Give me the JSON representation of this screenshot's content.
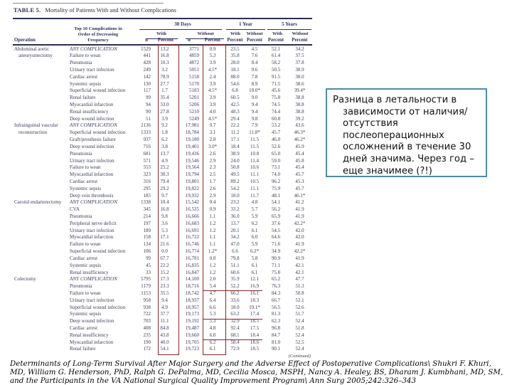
{
  "colors": {
    "table_ink": "#3a3a5e",
    "highlight_red": "#8a2424",
    "callout_border": "#4d8ca8",
    "background": "#ffffff"
  },
  "table": {
    "label": "TABLE 5.",
    "title": "Mortality of Patients With and Without Complications",
    "continued": "(Continued)",
    "headers": {
      "operation": "Operation",
      "complications": [
        "Top 10 Complications in",
        "Order of Decreasing",
        "Frequency"
      ],
      "groups": {
        "d30": "30 Days",
        "y1": "1 Year",
        "y5": "5 Years"
      },
      "sub": {
        "with": "With",
        "without": "Without"
      },
      "n": "n",
      "percent": "Percent"
    },
    "sections": [
      {
        "operation": "Abdominal aortic aneurysmectomy",
        "operation_lines": [
          "Abdominal aortic",
          "aneurysmectomy"
        ],
        "rows": [
          [
            "ANY COMPLICATION",
            "1529",
            "13.2",
            "3771",
            "0.9",
            "23.5",
            "4.5",
            "52.1",
            "34.2"
          ],
          [
            "Failure to wean",
            "441",
            "16.8",
            "4859",
            "5.3",
            "35.8",
            "7.6",
            "61.4",
            "37.5"
          ],
          [
            "Pneumonia",
            "428",
            "10.3",
            "4872",
            "3.9",
            "28.0",
            "8.4",
            "58.2",
            "37.8"
          ],
          [
            "Urinary tract infection",
            "249",
            "3.2",
            "5051",
            "4.5*",
            "18.1",
            "9.6",
            "50.5",
            "38.9"
          ],
          [
            "Cardiac arrest",
            "142",
            "78.9",
            "5158",
            "2.4",
            "88.0",
            "7.8",
            "91.5",
            "38.0"
          ],
          [
            "Systemic sepsis",
            "130",
            "27.7",
            "5170",
            "3.9",
            "54.6",
            "8.9",
            "71.5",
            "38.6"
          ],
          [
            "Superficial wound infection",
            "117",
            "1.7",
            "5183",
            "4.5*",
            "6.8",
            "10.0*",
            "45.6",
            "39.4*"
          ],
          [
            "Renal failure",
            "99",
            "35.4",
            "5201",
            "3.9",
            "60.5",
            "9.0",
            "75.8",
            "38.8"
          ],
          [
            "Myocardial infarction",
            "94",
            "33.0",
            "5206",
            "3.9",
            "42.5",
            "9.4",
            "74.5",
            "38.8"
          ],
          [
            "Renal insufficiency",
            "90",
            "27.8",
            "5210",
            "4.0",
            "48.3",
            "9.4",
            "74.4",
            "38.8"
          ],
          [
            "Deep wound infection",
            "51",
            "3.9",
            "5249",
            "4.5*",
            "29.4",
            "9.8",
            "60.8",
            "39.2"
          ]
        ]
      },
      {
        "operation": "Infrainguinal vascular reconstruction",
        "operation_lines": [
          "Infrainguinal vascular",
          "reconstruction"
        ],
        "rows": [
          [
            "ANY COMPLICATION",
            "2136",
            "9.2",
            "17,981",
            "0.7",
            "22.2",
            "7.9",
            "53.2",
            "43.6"
          ],
          [
            "Superficial wound infection",
            "1333",
            "1.8",
            "18,784",
            "3.1",
            "11.2",
            "11.8*",
            "45.7",
            "46.3*"
          ],
          [
            "Graft/prosthesis failure",
            "937",
            "6.2",
            "19,180",
            "2.8",
            "17.1",
            "11.5",
            "46.0",
            "46.2*"
          ],
          [
            "Deep wound infection",
            "716",
            "3.8",
            "19,401",
            "3.0*",
            "18.4",
            "11.5",
            "52.6",
            "45.9"
          ],
          [
            "Pneumonia",
            "681",
            "13.7",
            "19,436",
            "2.6",
            "38.9",
            "10.8",
            "65.0",
            "45.4"
          ],
          [
            "Urinary tract infection",
            "571",
            "4.9",
            "19,546",
            "2.9",
            "24.0",
            "11.4",
            "59.0",
            "45.8"
          ],
          [
            "Failure to wean",
            "553",
            "25.2",
            "19,564",
            "2.3",
            "50.8",
            "10.6",
            "73.1",
            "45.4"
          ],
          [
            "Myocardial infarction",
            "323",
            "30.3",
            "19,794",
            "2.5",
            "49.5",
            "11.1",
            "74.0",
            "45.7"
          ],
          [
            "Cardiac arrest",
            "316",
            "79.4",
            "19,801",
            "1.7",
            "89.2",
            "10.5",
            "96.2",
            "45.3"
          ],
          [
            "Systemic sepsis",
            "295",
            "29.2",
            "19,822",
            "2.6",
            "54.2",
            "11.1",
            "75.9",
            "45.7"
          ],
          [
            "Deep vein thrombosis",
            "185",
            "9.7",
            "19,932",
            "2.9",
            "18.0",
            "11.7",
            "48.1",
            "46.1*"
          ]
        ]
      },
      {
        "operation": "Carotid endarterectomy",
        "operation_lines": [
          "Carotid endarterectomy"
        ],
        "rows": [
          [
            "ANY COMPLICATION",
            "1338",
            "10.4",
            "15,542",
            "0.4",
            "23.2",
            "4.8",
            "54.1",
            "41.2"
          ],
          [
            "CVA",
            "345",
            "16.8",
            "16,535",
            "0.9",
            "33.2",
            "5.7",
            "56.2",
            "41.9"
          ],
          [
            "Pneumonia",
            "214",
            "9.8",
            "16,666",
            "1.1",
            "36.0",
            "5.9",
            "65.9",
            "41.9"
          ],
          [
            "Peripheral nerve deficit",
            "197",
            "3.6",
            "16,683",
            "1.2",
            "13.7",
            "6.2",
            "37.6",
            "42.2*"
          ],
          [
            "Urinary tract infection",
            "189",
            "5.3",
            "16,691",
            "1.2",
            "20.1",
            "6.1",
            "54.5",
            "42.0"
          ],
          [
            "Myocardial infarction",
            "158",
            "17.1",
            "16,722",
            "1.1",
            "34.2",
            "6.0",
            "64.6",
            "42.0"
          ],
          [
            "Failure to wean",
            "134",
            "21.6",
            "16,746",
            "1.1",
            "47.0",
            "5.9",
            "71.6",
            "41.9"
          ],
          [
            "Superficial wound infection",
            "106",
            "0.0",
            "16,774",
            "1.2*",
            "6.6",
            "6.2*",
            "34.9",
            "42.2*"
          ],
          [
            "Cardiac arrest",
            "99",
            "67.7",
            "16,781",
            "0.8",
            "79.8",
            "5.8",
            "90.9",
            "41.9"
          ],
          [
            "Systemic sepsis",
            "45",
            "22.2",
            "16,835",
            "1.2",
            "51.1",
            "6.1",
            "71.1",
            "42.1"
          ],
          [
            "Renal insufficiency",
            "33",
            "15.2",
            "16,847",
            "1.2",
            "60.6",
            "6.1",
            "75.8",
            "42.1"
          ]
        ]
      },
      {
        "operation": "Colectomy",
        "operation_lines": [
          "Colectomy"
        ],
        "rows": [
          [
            "ANY COMPLICATION",
            "5795",
            "17.3",
            "14,100",
            "2.0",
            "35.9",
            "12.1",
            "65.2",
            "47.7"
          ],
          [
            "Pneumonia",
            "1179",
            "23.3",
            "18,716",
            "5.4",
            "52.2",
            "16.9",
            "76.3",
            "51.3"
          ],
          [
            "Failure to wean",
            "1153",
            "35.5",
            "18,742",
            "4.7",
            "66.2",
            "16.1",
            "84.3",
            "50.8"
          ],
          [
            "Urinary tract infection",
            "958",
            "9.4",
            "18,937",
            "6.4",
            "33.6",
            "18.3",
            "66.7",
            "52.1"
          ],
          [
            "Superficial wound infection",
            "938",
            "4.9",
            "18,957",
            "6.6",
            "18.0",
            "19.1*",
            "56.5",
            "52.6"
          ],
          [
            "Systemic sepsis",
            "722",
            "37.7",
            "19,173",
            "5.3",
            "63.2",
            "17.4",
            "81.3",
            "51.7"
          ],
          [
            "Deep wound infection",
            "703",
            "11.1",
            "19,192",
            "5.3",
            "32.9",
            "18.5",
            "62.3",
            "52.4"
          ],
          [
            "Cardiac arrest",
            "408",
            "84.8",
            "19,487",
            "4.8",
            "92.4",
            "17.5",
            "96.8",
            "51.8"
          ],
          [
            "Renal insufficiency",
            "235",
            "43.8",
            "19,660",
            "6.0",
            "68.1",
            "18.4",
            "84.7",
            "52.4"
          ],
          [
            "Myocardial infarction",
            "190",
            "40.0",
            "19,705",
            "6.2",
            "58.4",
            "18.6",
            "81.0",
            "52.5"
          ],
          [
            "Renal failure",
            "172",
            "54.1",
            "19,723",
            "6.1",
            "72.9",
            "18.5",
            "90.1",
            "52.4"
          ]
        ]
      }
    ]
  },
  "annotation": {
    "text": "Разница в летальности в зависимости от наличия/отсутствия послеоперационных осложнений в течение 30 дней значима. Через год – еще значимее (?!)"
  },
  "citation": {
    "text": "Determinants of Long-Term Survival After Major Surgery and the Adverse Effect of Postoperative Complications\\ Shukri F. Khuri, MD, William G. Henderson, PhD, Ralph G. DePalma, MD, Cecilia Mosca, MSPH, Nancy A. Healey, BS, Dharam J. Kumbhani, MD, SM, and the Participants in the VA National Surgical Quality Improvement Program\\ Ann Surg 2005;242:326–343"
  }
}
